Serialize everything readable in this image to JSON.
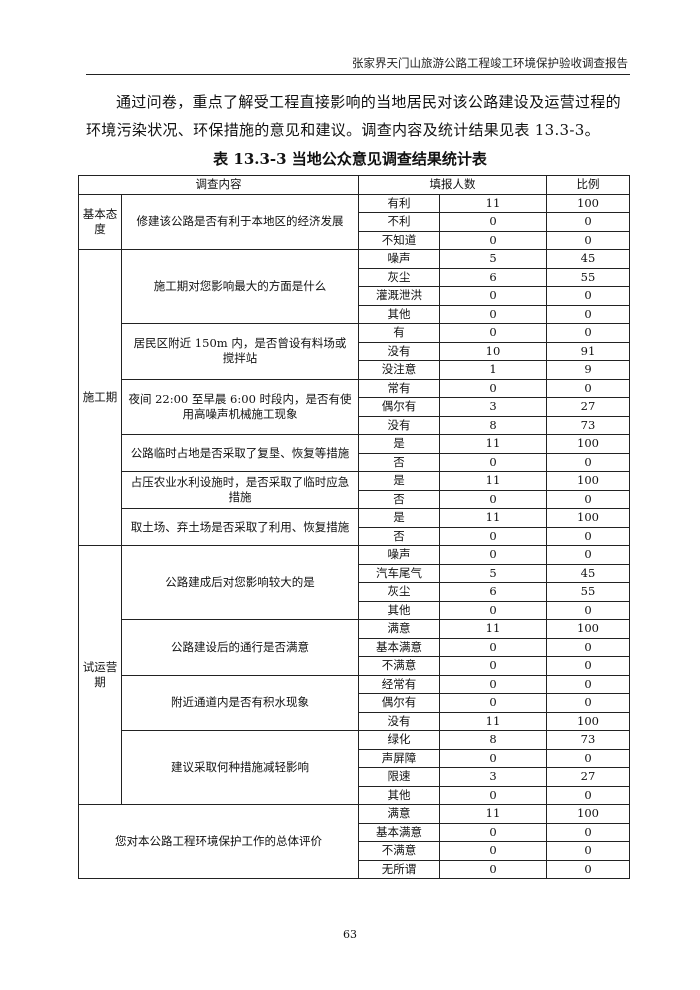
{
  "header": {
    "running_title": "张家界天门山旅游公路工程竣工环境保护验收调查报告"
  },
  "body": {
    "paragraph": "通过问卷，重点了解受工程直接影响的当地居民对该公路建设及运营过程的环境污染状况、环保措施的意见和建议。调查内容及统计结果见表 13.3-3。"
  },
  "table": {
    "title": "表 13.3-3  当地公众意见调查结果统计表",
    "columns": [
      "调查内容",
      "填报人数",
      "比例"
    ],
    "sections": [
      {
        "name": "基本态度",
        "questions": [
          {
            "q": "修建该公路是否有利于本地区的经济发展",
            "options": [
              [
                "有利",
                "11",
                "100"
              ],
              [
                "不利",
                "0",
                "0"
              ],
              [
                "不知道",
                "0",
                "0"
              ]
            ]
          }
        ]
      },
      {
        "name": "施工期",
        "questions": [
          {
            "q": "施工期对您影响最大的方面是什么",
            "options": [
              [
                "噪声",
                "5",
                "45"
              ],
              [
                "灰尘",
                "6",
                "55"
              ],
              [
                "灌溉泄洪",
                "0",
                "0"
              ],
              [
                "其他",
                "0",
                "0"
              ]
            ]
          },
          {
            "q": "居民区附近 150m 内，是否曾设有料场或搅拌站",
            "options": [
              [
                "有",
                "0",
                "0"
              ],
              [
                "没有",
                "10",
                "91"
              ],
              [
                "没注意",
                "1",
                "9"
              ]
            ]
          },
          {
            "q": "夜间 22:00 至早晨 6:00 时段内，是否有使用高噪声机械施工现象",
            "options": [
              [
                "常有",
                "0",
                "0"
              ],
              [
                "偶尔有",
                "3",
                "27"
              ],
              [
                "没有",
                "8",
                "73"
              ]
            ]
          },
          {
            "q": "公路临时占地是否采取了复垦、恢复等措施",
            "options": [
              [
                "是",
                "11",
                "100"
              ],
              [
                "否",
                "0",
                "0"
              ]
            ]
          },
          {
            "q": "占压农业水利设施时，是否采取了临时应急措施",
            "options": [
              [
                "是",
                "11",
                "100"
              ],
              [
                "否",
                "0",
                "0"
              ]
            ]
          },
          {
            "q": "取土场、弃土场是否采取了利用、恢复措施",
            "options": [
              [
                "是",
                "11",
                "100"
              ],
              [
                "否",
                "0",
                "0"
              ]
            ]
          }
        ]
      },
      {
        "name": "试运营期",
        "questions": [
          {
            "q": "公路建成后对您影响较大的是",
            "options": [
              [
                "噪声",
                "0",
                "0"
              ],
              [
                "汽车尾气",
                "5",
                "45"
              ],
              [
                "灰尘",
                "6",
                "55"
              ],
              [
                "其他",
                "0",
                "0"
              ]
            ]
          },
          {
            "q": "公路建设后的通行是否满意",
            "options": [
              [
                "满意",
                "11",
                "100"
              ],
              [
                "基本满意",
                "0",
                "0"
              ],
              [
                "不满意",
                "0",
                "0"
              ]
            ]
          },
          {
            "q": "附近通道内是否有积水现象",
            "options": [
              [
                "经常有",
                "0",
                "0"
              ],
              [
                "偶尔有",
                "0",
                "0"
              ],
              [
                "没有",
                "11",
                "100"
              ]
            ]
          },
          {
            "q": "建议采取何种措施减轻影响",
            "options": [
              [
                "绿化",
                "8",
                "73"
              ],
              [
                "声屏障",
                "0",
                "0"
              ],
              [
                "限速",
                "3",
                "27"
              ],
              [
                "其他",
                "0",
                "0"
              ]
            ]
          }
        ]
      }
    ],
    "overall": {
      "q": "您对本公路工程环境保护工作的总体评价",
      "options": [
        [
          "满意",
          "11",
          "100"
        ],
        [
          "基本满意",
          "0",
          "0"
        ],
        [
          "不满意",
          "0",
          "0"
        ],
        [
          "无所谓",
          "0",
          "0"
        ]
      ]
    }
  },
  "footer": {
    "page_number": "63"
  }
}
